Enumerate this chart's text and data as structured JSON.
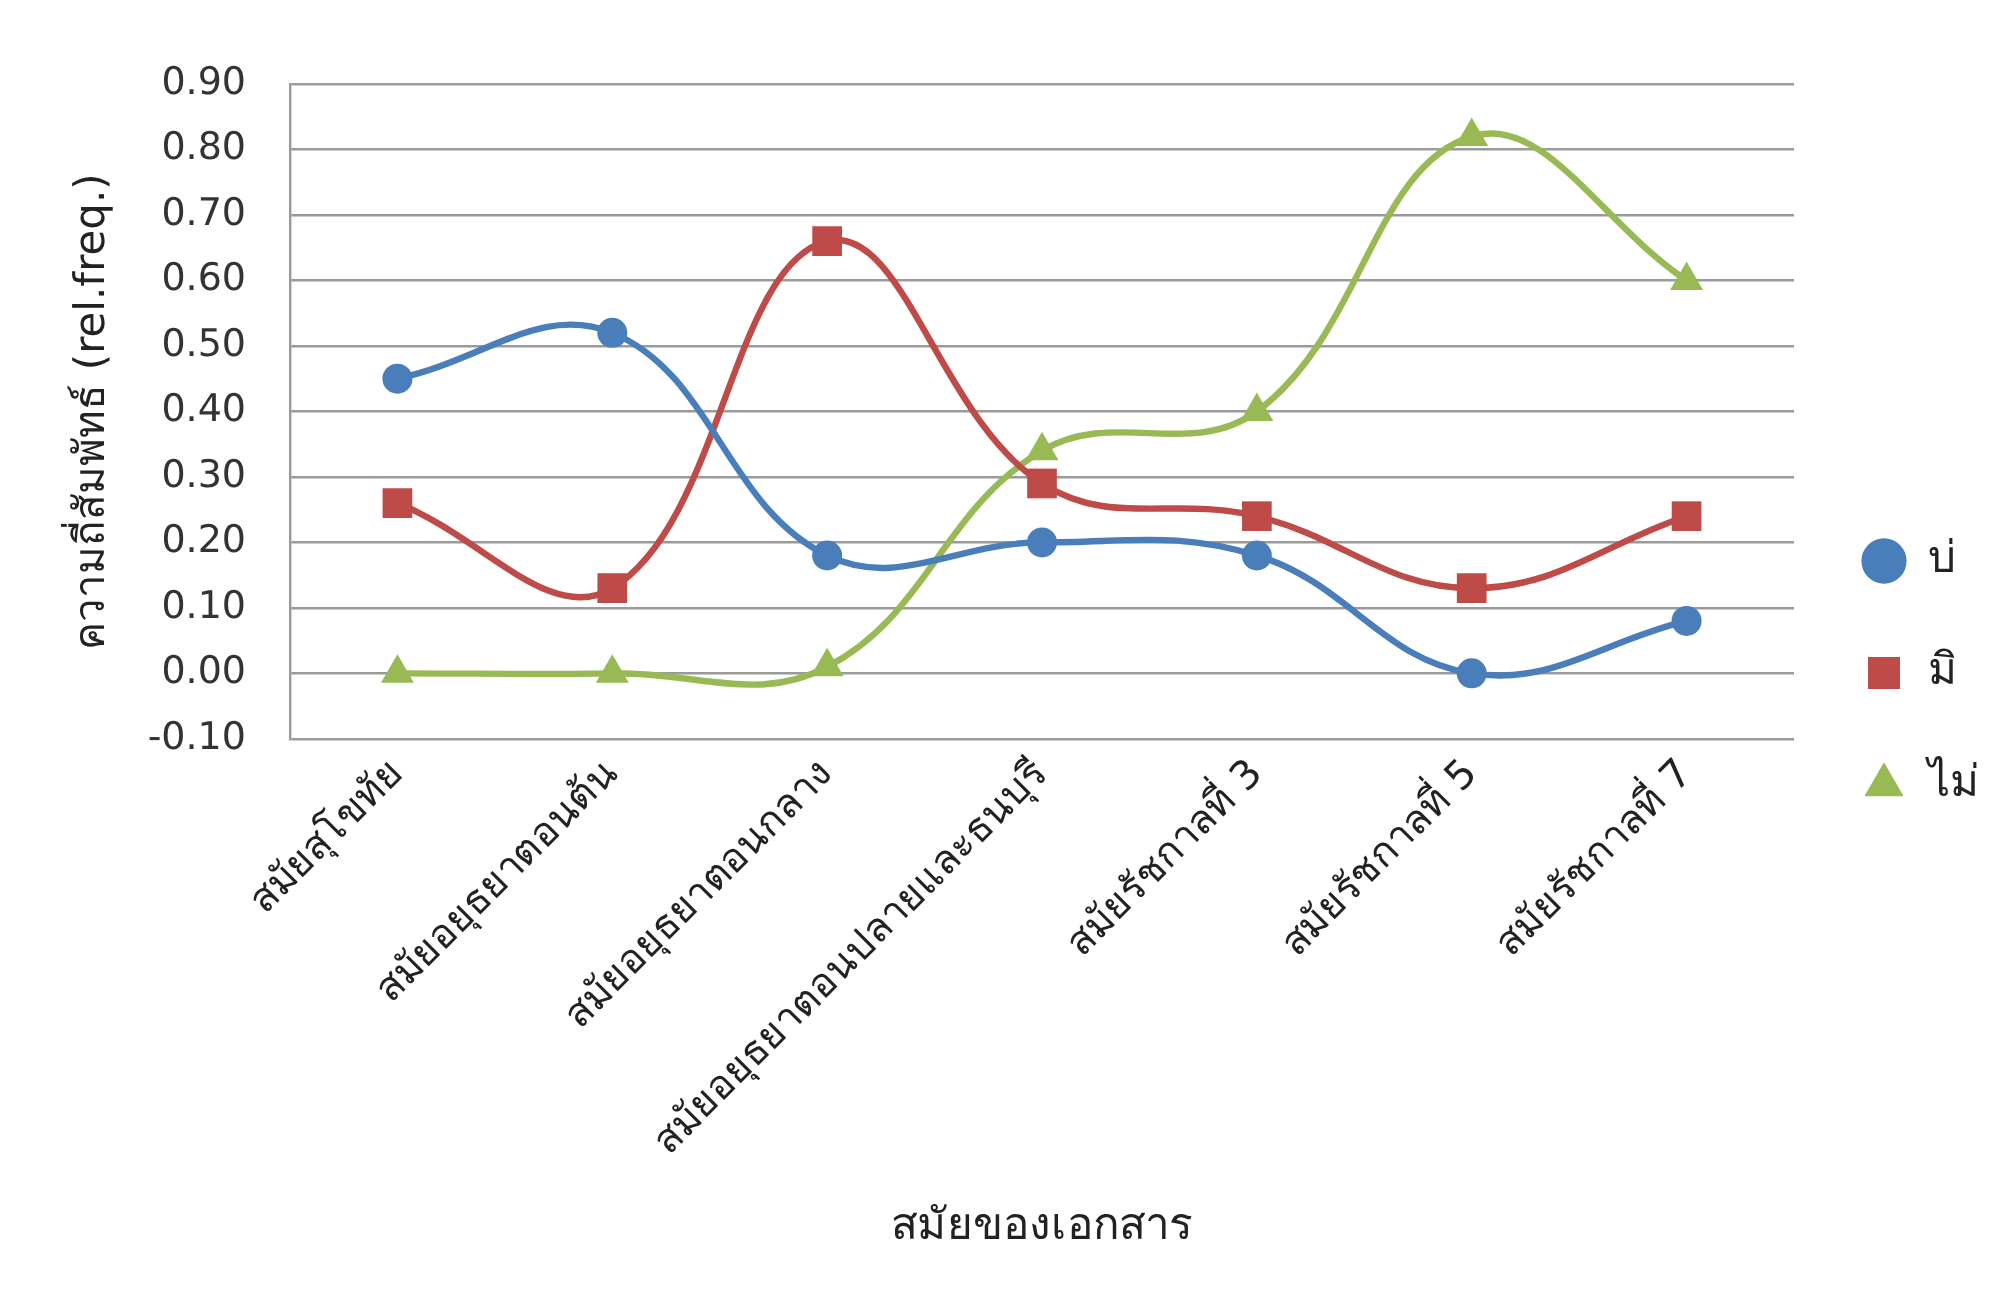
{
  "chart_data": {
    "type": "line",
    "xlabel": "สมัยของเอกสาร",
    "ylabel": "ความถี่สัมพัทธ์ (rel.freq.)",
    "categories": [
      "สมัยสุโขทัย",
      "สมัยอยุธยาตอนต้น",
      "สมัยอยุธยาตอนกลาง",
      "สมัยอยุธยาตอนปลายและธนบุรี",
      "สมัยรัชกาลที่ 3",
      "สมัยรัชกาลที่ 5",
      "สมัยรัชกาลที่ 7"
    ],
    "series": [
      {
        "name": "บ่",
        "color": "#4a7ebb",
        "marker": "circle",
        "values": [
          0.45,
          0.52,
          0.18,
          0.2,
          0.18,
          0,
          0.08
        ]
      },
      {
        "name": "มิ",
        "color": "#be4b48",
        "marker": "square",
        "values": [
          0.26,
          0.13,
          0.66,
          0.29,
          0.24,
          0.13,
          0.24
        ]
      },
      {
        "name": "ไม่",
        "color": "#98b954",
        "marker": "triangle",
        "values": [
          0,
          0,
          0.01,
          0.34,
          0.4,
          0.82,
          0.6
        ]
      }
    ],
    "ylim": [
      -0.1,
      0.9
    ],
    "yticks": [
      {
        "value": -0.1,
        "label": "-0.10"
      },
      {
        "value": 0,
        "label": "0.00"
      },
      {
        "value": 0.1,
        "label": "0.10"
      },
      {
        "value": 0.2,
        "label": "0.20"
      },
      {
        "value": 0.3,
        "label": "0.30"
      },
      {
        "value": 0.4,
        "label": "0.40"
      },
      {
        "value": 0.5,
        "label": "0.50"
      },
      {
        "value": 0.6,
        "label": "0.60"
      },
      {
        "value": 0.7,
        "label": "0.70"
      },
      {
        "value": 0.8,
        "label": "0.80"
      },
      {
        "value": 0.9,
        "label": "0.90"
      }
    ],
    "grid": "y",
    "legend": "right"
  }
}
